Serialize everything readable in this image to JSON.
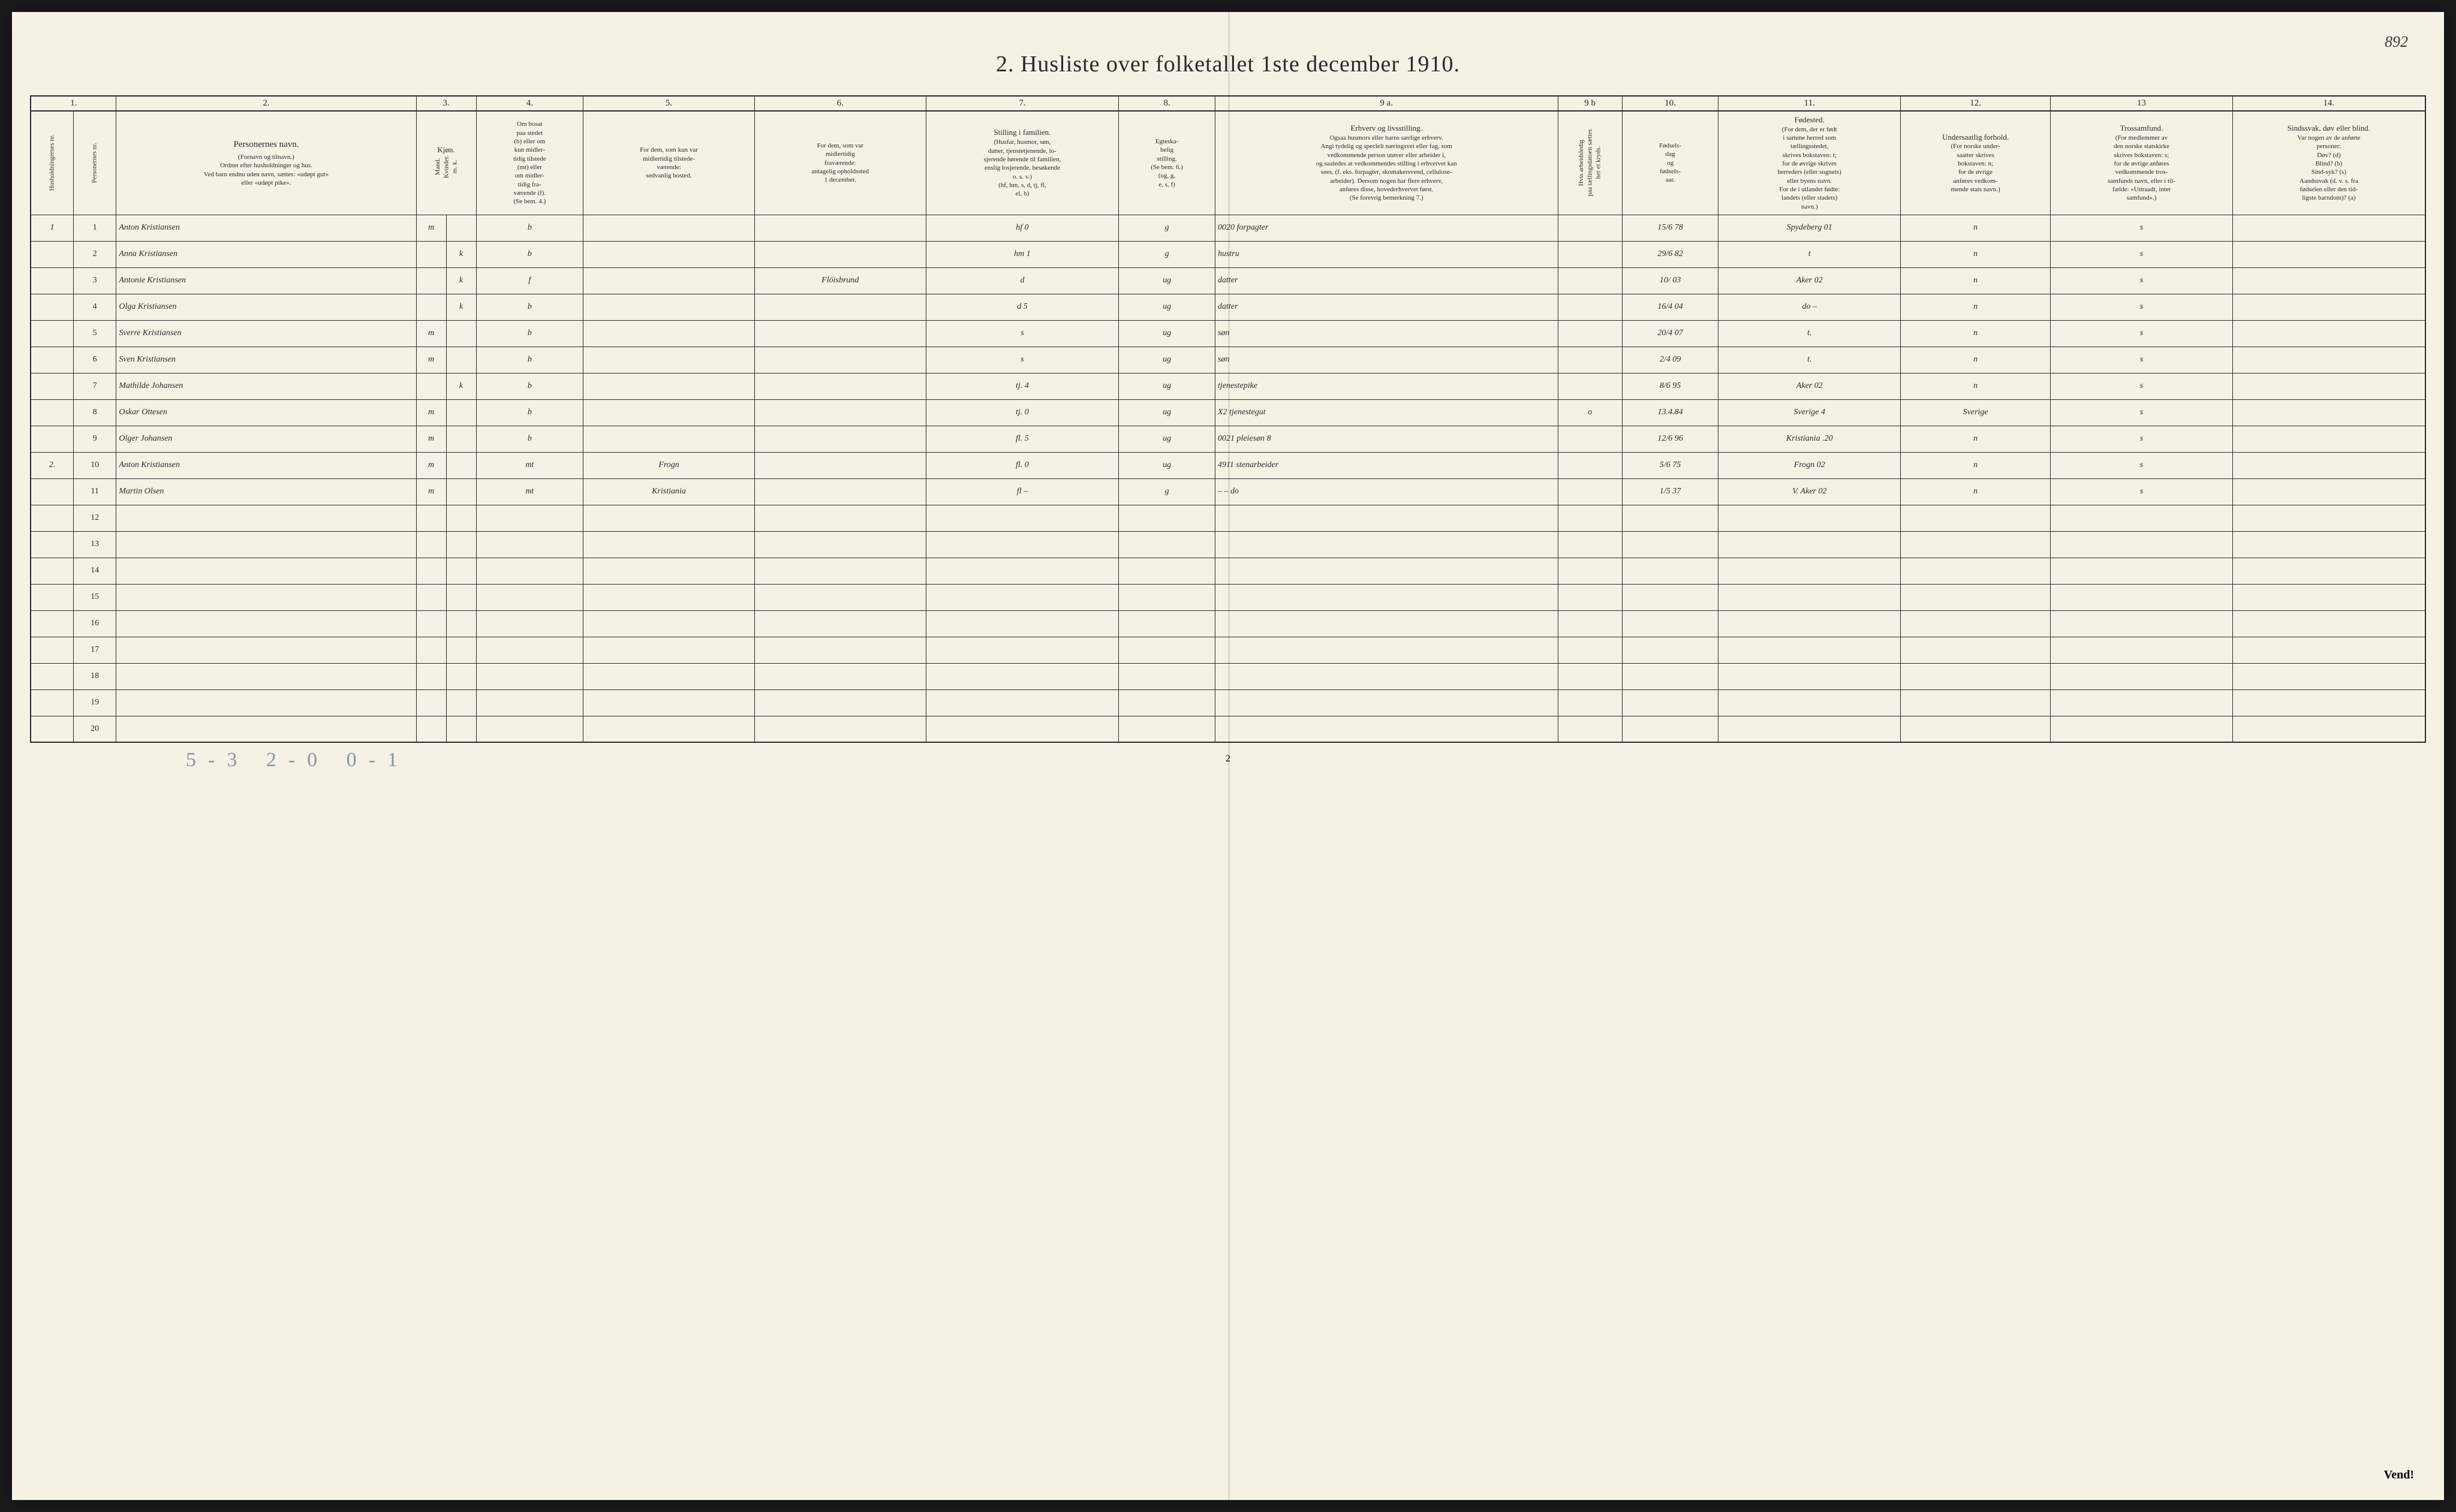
{
  "corner_number": "892",
  "title": "2.  Husliste over folketallet 1ste december 1910.",
  "column_numbers": [
    "1.",
    "",
    "2.",
    "3.",
    "",
    "4.",
    "5.",
    "6.",
    "7.",
    "8.",
    "9 a.",
    "9 b",
    "10.",
    "11.",
    "12.",
    "13",
    "14."
  ],
  "headers": {
    "c1": "Husholdningernes nr.",
    "c1b": "Personernes nr.",
    "c2_main": "Personernes navn.",
    "c2_sub": "(Fornavn og tilnavn.)\nOrdnet efter husholdninger og hus.\nVed barn endnu uden navn, sættes: «udøpt gut»\neller «udøpt pike».",
    "c3_main": "Kjøn.",
    "c3_sub": "Mand.\nKvinder.\nm.  k.",
    "c4_main": "Om bosat\npaa stedet\n(b) eller om\nkun midler-\ntidig tilstede\n(mt) eller\nom midler-\ntidig fra-\nværende (f).\n(Se bem. 4.)",
    "c5_main": "For dem, som kun var\nmidlertidig tilstede-\nværende:",
    "c5_sub": "sedvanlig bosted.",
    "c6_main": "For dem, som var\nmidlertidig\nfraværende:",
    "c6_sub": "antagelig opholdssted\n1 december.",
    "c7_main": "Stilling i familien.",
    "c7_sub": "(Husfar, husmor, søn,\ndatter, tjenstetjenende, lo-\nsjerende hørende til familien,\nenslig losjerende, besøkende\no. s. v.)\n(hf, hm, s, d, tj, fl,\nel, b)",
    "c8_main": "Egteska-\nbelig\nstilling.",
    "c8_sub": "(Se bem. 6.)\n(ug, g,\ne, s, f)",
    "c9a_main": "Erhverv og livsstilling.",
    "c9a_sub": "Ogsaa husmors eller barns særlige erhverv.\nAngi tydelig og specielt næringsvei eller fag, som\nvedkommende person utøver eller arbeider i,\nog saaledes at vedkommendes stilling i erhvervet kan\nsees, (f. eks. forpagter, skomakersvend, cellulose-\narbeider). Dersom nogen har flere erhverv,\nanføres disse, hovederhvervet først.\n(Se forevrig bemerkning 7.)",
    "c9b_main": "Hvis arbeidsledig\npaa tællingsdatoen sættes\nher et kryds.",
    "c10_main": "Fødsels-\ndag\nog\nfødsels-\naar.",
    "c11_main": "Fødested.",
    "c11_sub": "(For dem, der er født\ni samme herred som\ntællingsstedet,\nskrives bokstaven: t;\nfor de øvrige skrives\nherreders (eller sognets)\neller byens navn.\nFor de i utlandet fødte:\nlandets (eller stadets)\nnavn.)",
    "c12_main": "Undersaatlig\nforhold.",
    "c12_sub": "(For norske under-\nsaatter skrives\nbokstaven: n;\nfor de øvrige\nanføres vedkom-\nmende stats navn.)",
    "c13_main": "Trossamfund.",
    "c13_sub": "(For medlemmer av\nden norske statskirke\nskrives bokstaven: s;\nfor de øvrige anføres\nvedkommende tros-\nsamfunds navn, eller i til-\nfælde: «Uttraadt, intet\nsamfund».)",
    "c14_main": "Sindssvak, døv\neller blind.",
    "c14_sub": "Var nogen av de anførte\npersoner:\nDøv?       (d)\nBlind?     (b)\nSind-syk? (s)\nAandssvak (d. v. s. fra\nfødselen eller den tid-\nligste barndom)? (a)"
  },
  "rows": [
    {
      "hh": "1",
      "pn": "1",
      "name": "Anton Kristiansen",
      "m": "m",
      "k": "",
      "res": "b",
      "temp": "",
      "away": "",
      "fam": "hf",
      "fam2": "0",
      "mar": "g",
      "occ": "forpagter",
      "occ_pre": "0020",
      "x": "",
      "dob": "15/6 78",
      "birthplace": "Spydeberg 01",
      "nat": "n",
      "rel": "s",
      "dis": ""
    },
    {
      "hh": "",
      "pn": "2",
      "name": "Anna Kristiansen",
      "m": "",
      "k": "k",
      "res": "b",
      "temp": "",
      "away": "",
      "fam": "hm",
      "fam2": "1",
      "mar": "g",
      "occ": "hustru",
      "occ_pre": "",
      "x": "",
      "dob": "29/6 82",
      "birthplace": "t",
      "nat": "n",
      "rel": "s",
      "dis": ""
    },
    {
      "hh": "",
      "pn": "3",
      "name": "Antonie Kristiansen",
      "m": "",
      "k": "k",
      "res": "f",
      "temp": "",
      "away": "Flöisbrund",
      "fam": "d",
      "fam2": "",
      "mar": "ug",
      "occ": "datter",
      "occ_pre": "",
      "x": "",
      "dob": "10/ 03",
      "birthplace": "Aker 02",
      "nat": "n",
      "rel": "s",
      "dis": ""
    },
    {
      "hh": "",
      "pn": "4",
      "name": "Olga Kristiansen",
      "m": "",
      "k": "k",
      "res": "b",
      "temp": "",
      "away": "",
      "fam": "d",
      "fam2": "5",
      "mar": "ug",
      "occ": "datter",
      "occ_pre": "",
      "x": "",
      "dob": "16/4 04",
      "birthplace": "do   –",
      "nat": "n",
      "rel": "s",
      "dis": ""
    },
    {
      "hh": "",
      "pn": "5",
      "name": "Sverre Kristiansen",
      "m": "m",
      "k": "",
      "res": "b",
      "temp": "",
      "away": "",
      "fam": "s",
      "fam2": "",
      "mar": "ug",
      "occ": "søn",
      "occ_pre": "",
      "x": "",
      "dob": "20/4 07",
      "birthplace": "t.",
      "nat": "n",
      "rel": "s",
      "dis": ""
    },
    {
      "hh": "",
      "pn": "6",
      "name": "Sven Kristiansen",
      "m": "m",
      "k": "",
      "res": "b",
      "temp": "",
      "away": "",
      "fam": "s",
      "fam2": "",
      "mar": "ug",
      "occ": "søn",
      "occ_pre": "",
      "x": "",
      "dob": "2/4 09",
      "birthplace": "t.",
      "nat": "n",
      "rel": "s",
      "dis": ""
    },
    {
      "hh": "",
      "pn": "7",
      "name": "Mathilde Johansen",
      "m": "",
      "k": "k",
      "res": "b",
      "temp": "",
      "away": "",
      "fam": "tj.",
      "fam2": "4",
      "mar": "ug",
      "occ": "tjenestepike",
      "occ_pre": "",
      "x": "",
      "dob": "8/6 95",
      "birthplace": "Aker 02",
      "nat": "n",
      "rel": "s",
      "dis": ""
    },
    {
      "hh": "",
      "pn": "8",
      "name": "Oskar Ottesen",
      "m": "m",
      "k": "",
      "res": "b",
      "temp": "",
      "away": "",
      "fam": "tj.",
      "fam2": "0",
      "mar": "ug",
      "occ": "X2 tjenestegut",
      "occ_pre": "",
      "x": "o",
      "dob": "13.4.84",
      "birthplace": "Sverige 4",
      "nat": "Sverige",
      "rel": "s",
      "dis": ""
    },
    {
      "hh": "",
      "pn": "9",
      "name": "Olger Johansen",
      "m": "m",
      "k": "",
      "res": "b",
      "temp": "",
      "away": "",
      "fam": "fl.",
      "fam2": "5",
      "mar": "ug",
      "occ": "0021 pleiesøn        8",
      "occ_pre": "",
      "x": "",
      "dob": "12/6 96",
      "birthplace": "Kristiania  .20",
      "nat": "n",
      "rel": "s",
      "dis": ""
    },
    {
      "hh": "2.",
      "pn": "10",
      "name": "Anton Kristiansen",
      "m": "m",
      "k": "",
      "res": "mt",
      "temp": "Frogn",
      "away": "",
      "fam": "fl.",
      "fam2": "0",
      "mar": "ug",
      "occ": "4911 stenarbeider",
      "occ_pre": "",
      "x": "",
      "dob": "5/6 75",
      "birthplace": "Frogn 02",
      "nat": "n",
      "rel": "s",
      "dis": ""
    },
    {
      "hh": "",
      "pn": "11",
      "name": "Martin Olsen",
      "m": "m",
      "k": "",
      "res": "mt",
      "temp": "Kristiania",
      "away": "",
      "fam": "fl",
      "fam2": "–",
      "mar": "g",
      "occ": "–  –  do",
      "occ_pre": "",
      "x": "",
      "dob": "1/5 37",
      "birthplace": "V. Aker 02",
      "nat": "n",
      "rel": "s",
      "dis": ""
    }
  ],
  "empty_row_labels": [
    "12",
    "13",
    "14",
    "15",
    "16",
    "17",
    "18",
    "19",
    "20"
  ],
  "footer_tallies": "5-3   2-0   0-1",
  "page_bottom": "2",
  "vend": "Vend!",
  "colors": {
    "paper": "#f5f1e4",
    "ink": "#2a2a2a",
    "handwriting": "#3a3a3a",
    "pencil": "#8a95a0",
    "corner": "#7a7a6a",
    "background": "#1a1a1a"
  }
}
